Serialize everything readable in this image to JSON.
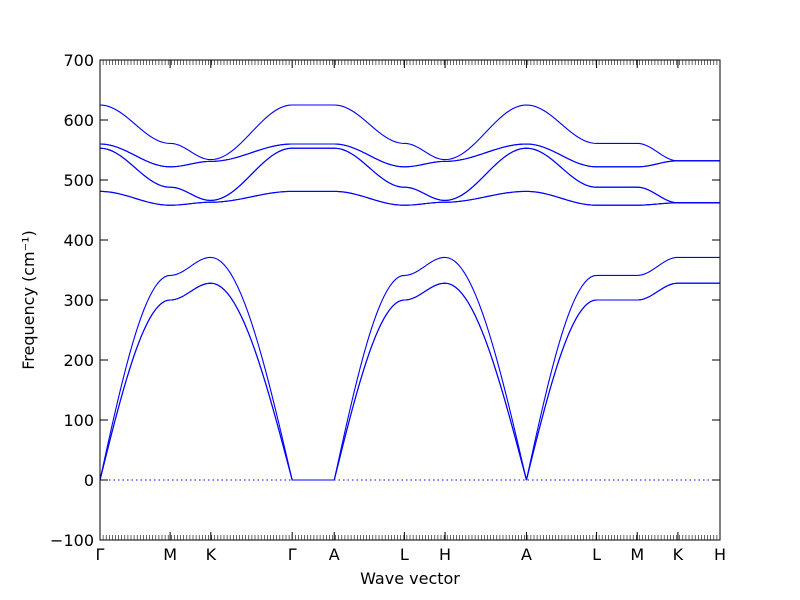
{
  "chart_data": {
    "type": "line",
    "title": "",
    "xlabel": "Wave vector",
    "ylabel": "Frequency (cm⁻¹)",
    "ylim": [
      -100,
      700
    ],
    "y_ticks": [
      -100,
      0,
      100,
      200,
      300,
      400,
      500,
      600,
      700
    ],
    "x_tick_labels": [
      "Γ",
      "M",
      "K",
      "Γ",
      "A",
      "L",
      "H",
      "A",
      "L",
      "M",
      "K",
      "H"
    ],
    "x_tick_positions": [
      0.0,
      1.0,
      1.58,
      2.74,
      3.34,
      4.34,
      4.92,
      6.08,
      7.08,
      7.66,
      8.24,
      8.84
    ],
    "xlim": [
      0.0,
      8.84
    ],
    "grid": false,
    "line_color": "#0000ff",
    "zero_line": {
      "y": 0,
      "style": "dotted",
      "color": "#0000ff"
    },
    "series": [
      {
        "x": [
          0.0,
          1.0,
          1.58,
          2.74,
          3.34,
          4.34,
          4.92,
          6.08,
          7.08,
          7.66,
          8.24,
          8.84
        ],
        "y": [
          0,
          300,
          328,
          0,
          0,
          300,
          328,
          0,
          300,
          300,
          328,
          328
        ]
      },
      {
        "x": [
          0.0,
          1.0,
          1.58,
          2.74,
          3.34,
          4.34,
          4.92,
          6.08,
          7.08,
          7.66,
          8.24,
          8.84
        ],
        "y": [
          0,
          300,
          328,
          0,
          0,
          300,
          328,
          0,
          300,
          300,
          328,
          328
        ]
      },
      {
        "x": [
          0.0,
          1.0,
          1.58,
          2.74,
          3.34,
          4.34,
          4.92,
          6.08,
          7.08,
          7.66,
          8.24,
          8.84
        ],
        "y": [
          0,
          341,
          371,
          0,
          0,
          341,
          371,
          0,
          341,
          341,
          371,
          371
        ]
      },
      {
        "x": [
          0.0,
          1.0,
          1.58,
          2.74,
          3.34,
          4.34,
          4.92,
          6.08,
          7.08,
          7.66,
          8.24,
          8.84
        ],
        "y": [
          481,
          458,
          463,
          481,
          481,
          458,
          463,
          481,
          458,
          458,
          462,
          462
        ]
      },
      {
        "x": [
          0.0,
          1.0,
          1.58,
          2.74,
          3.34,
          4.34,
          4.92,
          6.08,
          7.08,
          7.66,
          8.24,
          8.84
        ],
        "y": [
          481,
          458,
          463,
          481,
          481,
          458,
          463,
          481,
          458,
          458,
          462,
          462
        ]
      },
      {
        "x": [
          0.0,
          1.0,
          1.58,
          2.74,
          3.34,
          4.34,
          4.92,
          6.08,
          7.08,
          7.66,
          8.24,
          8.84
        ],
        "y": [
          553,
          488,
          466,
          553,
          553,
          488,
          466,
          553,
          488,
          488,
          462,
          462
        ]
      },
      {
        "x": [
          0.0,
          1.0,
          1.58,
          2.74,
          3.34,
          4.34,
          4.92,
          6.08,
          7.08,
          7.66,
          8.24,
          8.84
        ],
        "y": [
          553,
          488,
          466,
          553,
          553,
          488,
          466,
          553,
          488,
          488,
          462,
          462
        ]
      },
      {
        "x": [
          0.0,
          1.0,
          1.58,
          2.74,
          3.34,
          4.34,
          4.92,
          6.08,
          7.08,
          7.66,
          8.24,
          8.84
        ],
        "y": [
          560,
          522,
          531,
          560,
          560,
          522,
          531,
          560,
          522,
          522,
          532,
          532
        ]
      },
      {
        "x": [
          0.0,
          1.0,
          1.58,
          2.74,
          3.34,
          4.34,
          4.92,
          6.08,
          7.08,
          7.66,
          8.24,
          8.84
        ],
        "y": [
          560,
          522,
          531,
          560,
          560,
          522,
          531,
          560,
          522,
          522,
          532,
          532
        ]
      },
      {
        "x": [
          0.0,
          1.0,
          1.58,
          2.74,
          3.34,
          4.34,
          4.92,
          6.08,
          7.08,
          7.66,
          8.24,
          8.84
        ],
        "y": [
          625,
          561,
          534,
          625,
          625,
          561,
          534,
          625,
          561,
          561,
          532,
          532
        ]
      }
    ]
  }
}
